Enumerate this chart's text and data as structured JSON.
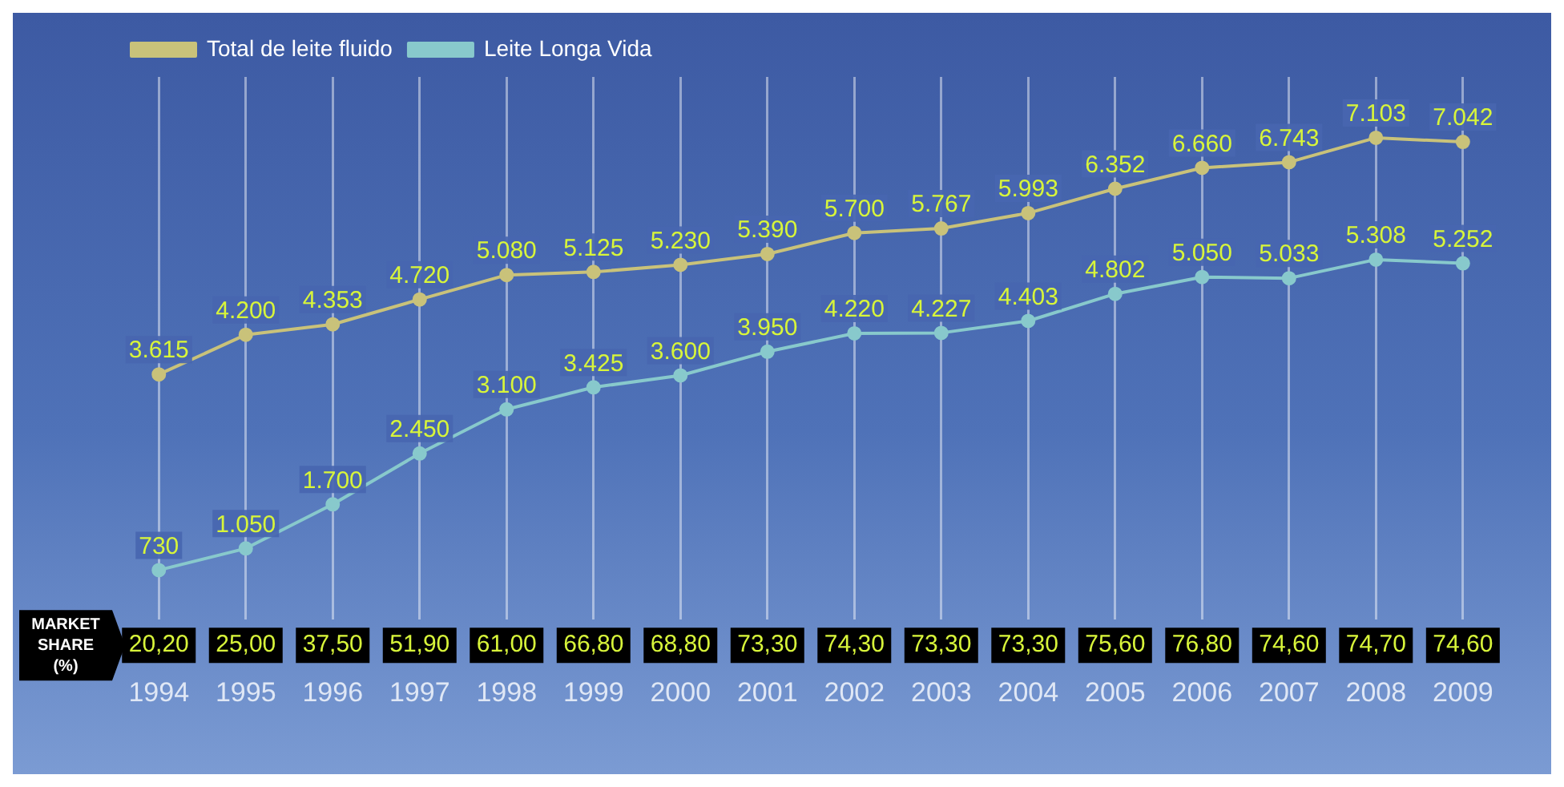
{
  "chart_data": {
    "type": "line",
    "categories": [
      "1994",
      "1995",
      "1996",
      "1997",
      "1998",
      "1999",
      "2000",
      "2001",
      "2002",
      "2003",
      "2004",
      "2005",
      "2006",
      "2007",
      "2008",
      "2009"
    ],
    "series": [
      {
        "name": "Total de leite fluido",
        "color": "#c9c27a",
        "values": [
          3615,
          4200,
          4353,
          4720,
          5080,
          5125,
          5230,
          5390,
          5700,
          5767,
          5993,
          6352,
          6660,
          6743,
          7103,
          7042
        ],
        "value_labels": [
          "3.615",
          "4.200",
          "4.353",
          "4.720",
          "5.080",
          "5.125",
          "5.230",
          "5.390",
          "5.700",
          "5.767",
          "5.993",
          "6.352",
          "6.660",
          "6.743",
          "7.103",
          "7.042"
        ]
      },
      {
        "name": "Leite Longa Vida",
        "color": "#88c9cc",
        "values": [
          730,
          1050,
          1700,
          2450,
          3100,
          3425,
          3600,
          3950,
          4220,
          4227,
          4403,
          4802,
          5050,
          5033,
          5308,
          5252
        ],
        "value_labels": [
          "730",
          "1.050",
          "1.700",
          "2.450",
          "3.100",
          "3.425",
          "3.600",
          "3.950",
          "4.220",
          "4.227",
          "4.403",
          "4.802",
          "5.050",
          "5.033",
          "5.308",
          "5.252"
        ]
      }
    ],
    "annotations": [
      "MARKET SHARE (%)",
      "20,20",
      "25,00",
      "37,50",
      "51,90",
      "61,00",
      "66,80",
      "68,80",
      "73,30",
      "74,30",
      "73,30",
      "73,30",
      "75,60",
      "76,80",
      "74,60",
      "74,70",
      "74,60"
    ],
    "grid": "x",
    "legend": "top left",
    "marker": "circle",
    "line_style": "solid",
    "tick_labels": "x"
  }
}
